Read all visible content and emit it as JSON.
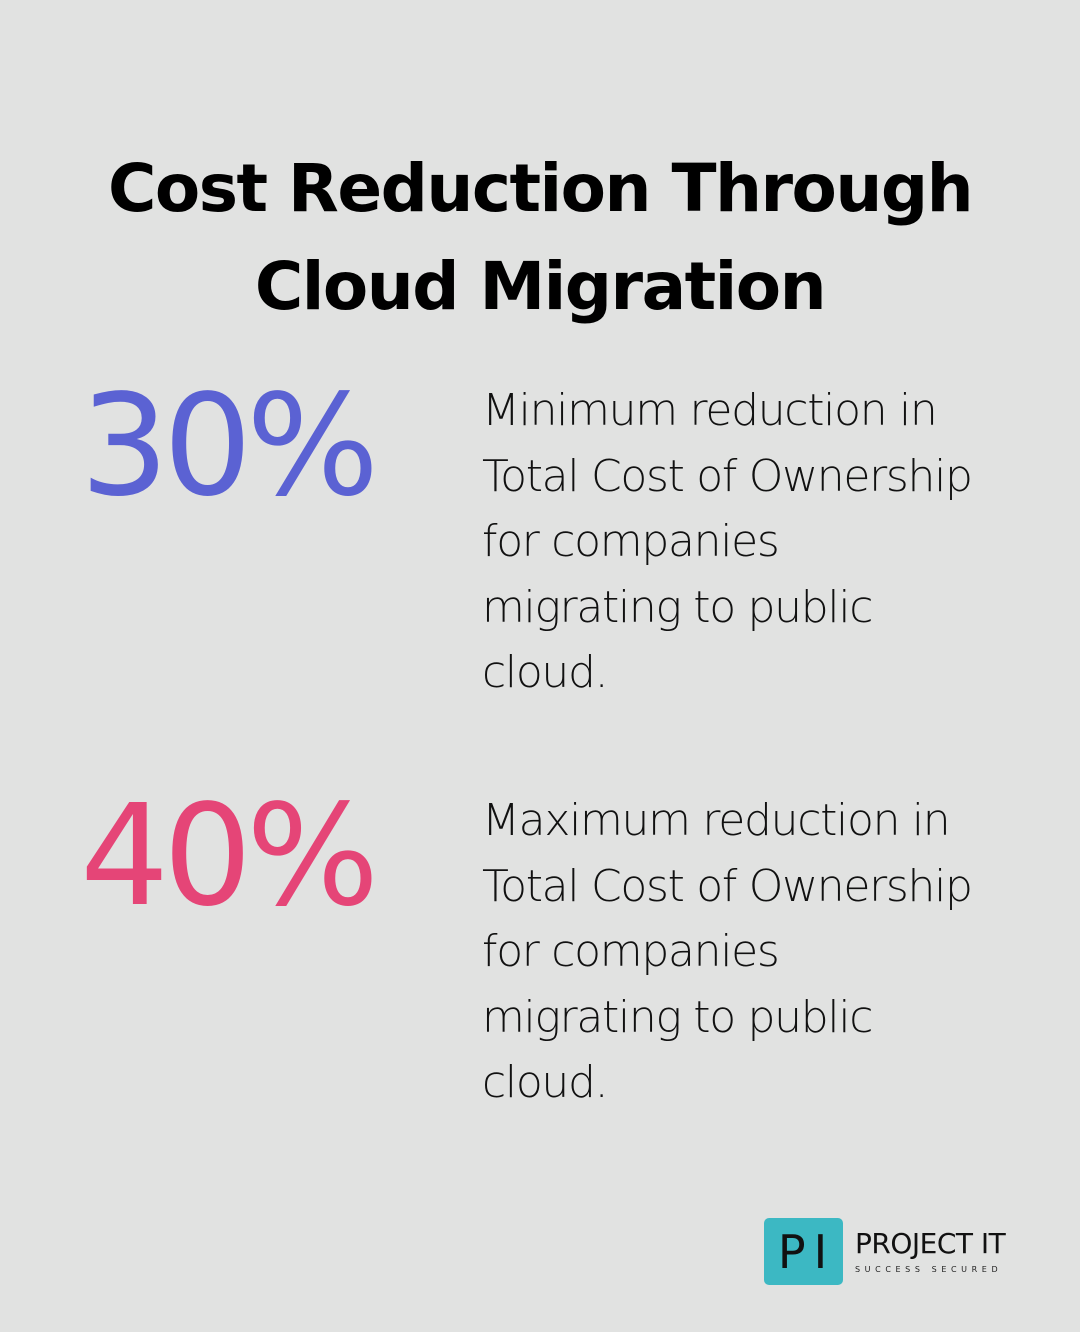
{
  "header": {
    "title_lines": [
      "Cost Reduction Through",
      "Cloud Migration"
    ]
  },
  "stats": [
    {
      "value": "30%",
      "color": "#5b62d3",
      "description_lines": [
        "Minimum reduction in",
        "Total Cost of Ownership",
        "for companies",
        "migrating to public",
        "cloud."
      ]
    },
    {
      "value": "40%",
      "color": "#e54577",
      "description_lines": [
        "Maximum reduction in",
        "Total Cost of Ownership",
        "for companies",
        "migrating to public",
        "cloud."
      ]
    }
  ],
  "logo": {
    "mark": "PI",
    "name": "PROJECT IT",
    "tagline": "SUCCESS SECURED",
    "mark_color": "#3cb8c3"
  },
  "colors": {
    "background": "#e1e2e1",
    "text": "#0a0a0a"
  }
}
